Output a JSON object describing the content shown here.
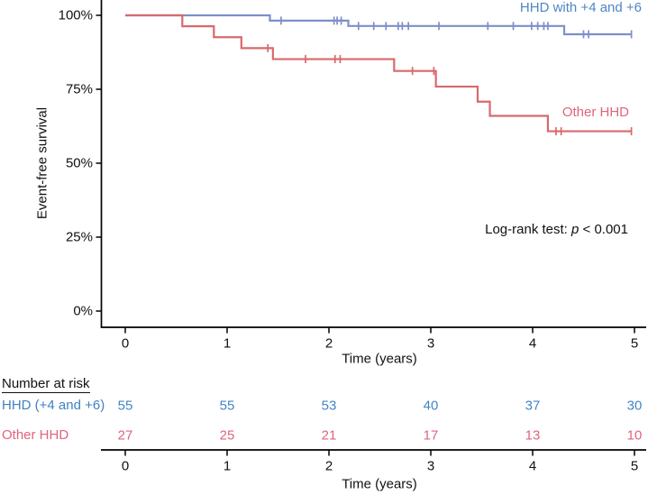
{
  "chart_data": {
    "type": "line",
    "subtype": "kaplan-meier-step",
    "title": "",
    "xlabel": "Time (years)",
    "ylabel": "Event-free survival",
    "xlim": [
      0,
      5
    ],
    "ylim": [
      0,
      100
    ],
    "xticks": [
      0,
      1,
      2,
      3,
      4,
      5
    ],
    "yticks": [
      {
        "pct": 0,
        "label": "0%"
      },
      {
        "pct": 25,
        "label": "25%"
      },
      {
        "pct": 50,
        "label": "50%"
      },
      {
        "pct": 75,
        "label": "75%"
      },
      {
        "pct": 100,
        "label": "100%"
      }
    ],
    "grid": false,
    "axis_color": "#000000",
    "series": [
      {
        "name": "HHD with +4 and +6",
        "line_color": "#7e8fc9",
        "text_color": "#4285c6",
        "steps_year_percent": [
          [
            0,
            100
          ],
          [
            1.42,
            98.2
          ],
          [
            2.19,
            96.4
          ],
          [
            4.31,
            93.6
          ],
          [
            4.97,
            93.6
          ]
        ],
        "censor_marks_year_percent": [
          [
            1.53,
            98.2
          ],
          [
            2.05,
            98.2
          ],
          [
            2.08,
            98.2
          ],
          [
            2.12,
            98.2
          ],
          [
            2.29,
            96.4
          ],
          [
            2.44,
            96.4
          ],
          [
            2.56,
            96.4
          ],
          [
            2.68,
            96.4
          ],
          [
            2.72,
            96.4
          ],
          [
            2.78,
            96.4
          ],
          [
            3.08,
            96.4
          ],
          [
            3.56,
            96.4
          ],
          [
            3.81,
            96.4
          ],
          [
            3.99,
            96.4
          ],
          [
            4.05,
            96.4
          ],
          [
            4.11,
            96.4
          ],
          [
            4.15,
            96.4
          ],
          [
            4.5,
            93.6
          ],
          [
            4.55,
            93.6
          ],
          [
            4.97,
            93.6
          ]
        ]
      },
      {
        "name": "Other HHD",
        "line_color": "#d8696d",
        "text_color": "#e0647b",
        "steps_year_percent": [
          [
            0,
            100
          ],
          [
            0.56,
            96.3
          ],
          [
            0.87,
            92.6
          ],
          [
            1.14,
            88.9
          ],
          [
            1.45,
            85.2
          ],
          [
            2.64,
            81.2
          ],
          [
            3.05,
            75.9
          ],
          [
            3.46,
            70.8
          ],
          [
            3.58,
            66.0
          ],
          [
            4.15,
            60.8
          ],
          [
            4.97,
            60.8
          ]
        ],
        "censor_marks_year_percent": [
          [
            1.4,
            88.9
          ],
          [
            1.77,
            85.2
          ],
          [
            2.06,
            85.2
          ],
          [
            2.11,
            85.2
          ],
          [
            2.82,
            81.2
          ],
          [
            3.03,
            81.2
          ],
          [
            4.23,
            60.8
          ],
          [
            4.28,
            60.8
          ],
          [
            4.97,
            60.8
          ]
        ]
      }
    ],
    "annotation": {
      "prefix": "Log-rank test: ",
      "p": "p",
      "suffix": " < 0.001"
    },
    "risk_table": {
      "header": "Number at risk",
      "time_points": [
        0,
        1,
        2,
        3,
        4,
        5
      ],
      "rows": [
        {
          "label": "HHD (+4 and +6)",
          "values": [
            55,
            55,
            53,
            40,
            37,
            30
          ]
        },
        {
          "label": "Other HHD",
          "values": [
            27,
            25,
            21,
            17,
            13,
            10
          ]
        }
      ],
      "xlabel": "Time (years)"
    }
  }
}
